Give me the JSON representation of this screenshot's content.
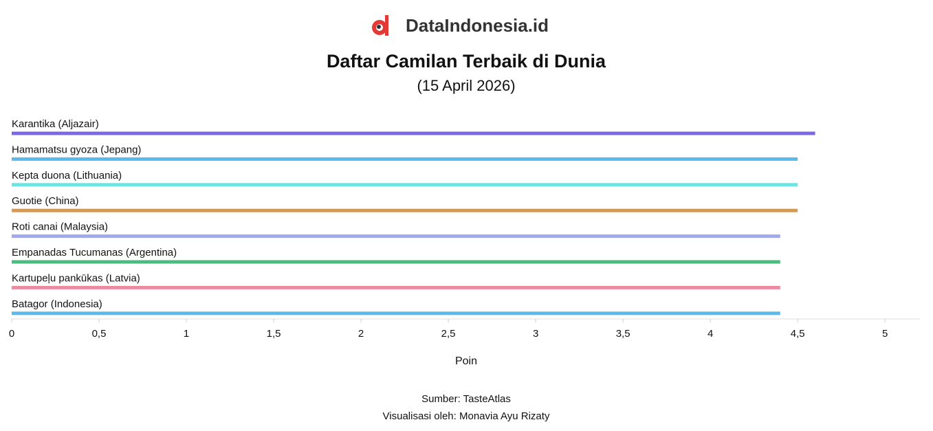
{
  "brand": "DataIndonesia.id",
  "chart_data": {
    "type": "bar",
    "orientation": "horizontal",
    "title": "Daftar Camilan Terbaik di Dunia",
    "subtitle": "(15 April 2026)",
    "x_label": "Poin",
    "source": "Sumber: TasteAtlas",
    "credit": "Visualisasi oleh: Monavia Ayu Rizaty",
    "categories": [
      "Karantika (Aljazair)",
      "Hamamatsu gyoza (Jepang)",
      "Kepta duona (Lithuania)",
      "Guotie (China)",
      "Roti canai (Malaysia)",
      "Empanadas Tucumanas (Argentina)",
      "Kartupeļu pankūkas (Latvia)",
      "Batagor (Indonesia)"
    ],
    "values": [
      4.6,
      4.5,
      4.5,
      4.5,
      4.4,
      4.4,
      4.4,
      4.4
    ],
    "colors": [
      "#7b68e0",
      "#5bbbe8",
      "#6ee3e3",
      "#d49a55",
      "#a0a8f0",
      "#4cbb7f",
      "#ec8aa0",
      "#5bbbe8"
    ],
    "xlim": [
      0,
      5.2
    ],
    "xticks": [
      0,
      {
        "value": 0.5,
        "label": "0,5"
      },
      1,
      {
        "value": 1.5,
        "label": "1,5"
      },
      2,
      {
        "value": 2.5,
        "label": "2,5"
      },
      3,
      {
        "value": 3.5,
        "label": "3,5"
      },
      4,
      {
        "value": 4.5,
        "label": "4,5"
      },
      5
    ],
    "grid": false
  }
}
